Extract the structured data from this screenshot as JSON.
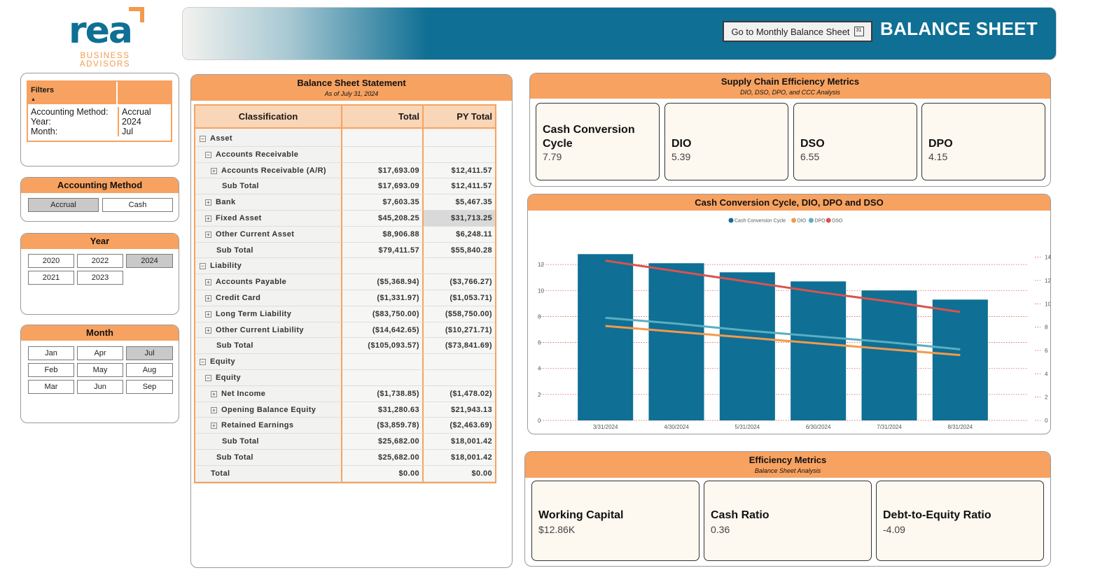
{
  "logo": {
    "name": "rea",
    "tagline": "BUSINESS ADVISORS"
  },
  "header": {
    "goto_button": "Go to Monthly Balance Sheet",
    "calendar_glyph": "31",
    "title": "BALANCE SHEET"
  },
  "filters": {
    "title": "Filters",
    "sort_glyph": "▲",
    "labels": [
      "Accounting Method:",
      "Year:",
      "Month:"
    ],
    "values": [
      "Accrual",
      "2024",
      "Jul"
    ]
  },
  "accounting_method": {
    "title": "Accounting Method",
    "options": [
      "Accrual",
      "Cash"
    ],
    "selected": "Accrual"
  },
  "year": {
    "title": "Year",
    "options": [
      "2020",
      "2022",
      "2024",
      "2021",
      "2023"
    ],
    "selected": "2024"
  },
  "month": {
    "title": "Month",
    "options": [
      "Jan",
      "Apr",
      "Jul",
      "Feb",
      "May",
      "Aug",
      "Mar",
      "Jun",
      "Sep"
    ],
    "selected": "Jul"
  },
  "balance_sheet": {
    "title": "Balance Sheet Statement",
    "subtitle": "As of July 31, 2024",
    "columns": [
      "Classification",
      "Total",
      "PY Total"
    ],
    "rows": [
      {
        "label": "Asset",
        "toggle": "⊟",
        "total": "",
        "py": ""
      },
      {
        "label": "Accounts Receivable",
        "toggle": "⊟",
        "total": "",
        "py": ""
      },
      {
        "label": "Accounts Receivable (A/R)",
        "toggle": "⊞",
        "total": "$17,693.09",
        "py": "$12,411.57"
      },
      {
        "label": "Sub Total",
        "toggle": "",
        "total": "$17,693.09",
        "py": "$12,411.57"
      },
      {
        "label": "Bank",
        "toggle": "⊞",
        "total": "$7,603.35",
        "py": "$5,467.35"
      },
      {
        "label": "Fixed Asset",
        "toggle": "⊞",
        "total": "$45,208.25",
        "py": "$31,713.25"
      },
      {
        "label": "Other Current Asset",
        "toggle": "⊞",
        "total": "$8,906.88",
        "py": "$6,248.11"
      },
      {
        "label": "Sub Total",
        "toggle": "",
        "total": "$79,411.57",
        "py": "$55,840.28"
      },
      {
        "label": "Liability",
        "toggle": "⊟",
        "total": "",
        "py": ""
      },
      {
        "label": "Accounts Payable",
        "toggle": "⊞",
        "total": "($5,368.94)",
        "py": "($3,766.27)"
      },
      {
        "label": "Credit Card",
        "toggle": "⊞",
        "total": "($1,331.97)",
        "py": "($1,053.71)"
      },
      {
        "label": "Long Term Liability",
        "toggle": "⊞",
        "total": "($83,750.00)",
        "py": "($58,750.00)"
      },
      {
        "label": "Other Current Liability",
        "toggle": "⊞",
        "total": "($14,642.65)",
        "py": "($10,271.71)"
      },
      {
        "label": "Sub Total",
        "toggle": "",
        "total": "($105,093.57)",
        "py": "($73,841.69)"
      },
      {
        "label": "Equity",
        "toggle": "⊟",
        "total": "",
        "py": ""
      },
      {
        "label": "Equity",
        "toggle": "⊟",
        "total": "",
        "py": ""
      },
      {
        "label": "Net Income",
        "toggle": "⊞",
        "total": "($1,738.85)",
        "py": "($1,478.02)"
      },
      {
        "label": "Opening Balance Equity",
        "toggle": "⊞",
        "total": "$31,280.63",
        "py": "$21,943.13"
      },
      {
        "label": "Retained Earnings",
        "toggle": "⊞",
        "total": "($3,859.78)",
        "py": "($2,463.69)"
      },
      {
        "label": "Sub Total",
        "toggle": "",
        "total": "$25,682.00",
        "py": "$18,001.42"
      },
      {
        "label": "Sub Total",
        "toggle": "",
        "total": "$25,682.00",
        "py": "$18,001.42"
      },
      {
        "label": "Total",
        "toggle": "",
        "total": "$0.00",
        "py": "$0.00"
      }
    ]
  },
  "supply_chain": {
    "title": "Supply Chain Efficiency Metrics",
    "subtitle": "DIO, DSO, DPO, and CCC Analysis",
    "cards": [
      {
        "title": "Cash Conversion Cycle",
        "value": "7.79"
      },
      {
        "title": "DIO",
        "value": "5.39"
      },
      {
        "title": "DSO",
        "value": "6.55"
      },
      {
        "title": "DPO",
        "value": "4.15"
      }
    ]
  },
  "chart_title": "Cash Conversion Cycle, DIO, DPO and DSO",
  "chart_data": {
    "type": "bar",
    "categories": [
      "3/31/2024",
      "4/30/2024",
      "5/31/2024",
      "6/30/2024",
      "7/31/2024",
      "8/31/2024"
    ],
    "series": [
      {
        "name": "Cash Conversion Cycle",
        "type": "bar",
        "axis": "left",
        "color": "#0f6f94",
        "values": [
          12.8,
          12.1,
          11.4,
          10.7,
          10.0,
          9.3
        ]
      },
      {
        "name": "DIO",
        "type": "line",
        "axis": "right",
        "color": "#f39a4c",
        "values": [
          8.1,
          7.6,
          7.1,
          6.6,
          6.1,
          5.6
        ]
      },
      {
        "name": "DPO",
        "type": "line",
        "axis": "right",
        "color": "#5aafc2",
        "values": [
          8.8,
          8.3,
          7.7,
          7.2,
          6.7,
          6.1
        ]
      },
      {
        "name": "DSO",
        "type": "line",
        "axis": "right",
        "color": "#d9534f",
        "values": [
          13.7,
          12.8,
          11.9,
          11.0,
          10.2,
          9.3
        ]
      }
    ],
    "y_left": {
      "min": 0,
      "max": 14,
      "ticks": [
        "0",
        "2",
        "4",
        "6",
        "8",
        "10",
        "12"
      ]
    },
    "y_right": {
      "min": 0,
      "max": 15.6,
      "ticks": [
        "0",
        "2",
        "4",
        "6",
        "8",
        "10",
        "12",
        "14"
      ]
    },
    "legend": "top-center",
    "grid": true
  },
  "efficiency": {
    "title": "Efficiency Metrics",
    "subtitle": "Balance Sheet Analysis",
    "cards": [
      {
        "title": "Working Capital",
        "value": "$12.86K"
      },
      {
        "title": "Cash Ratio",
        "value": "0.36"
      },
      {
        "title": "Debt-to-Equity Ratio",
        "value": "-4.09"
      }
    ]
  }
}
